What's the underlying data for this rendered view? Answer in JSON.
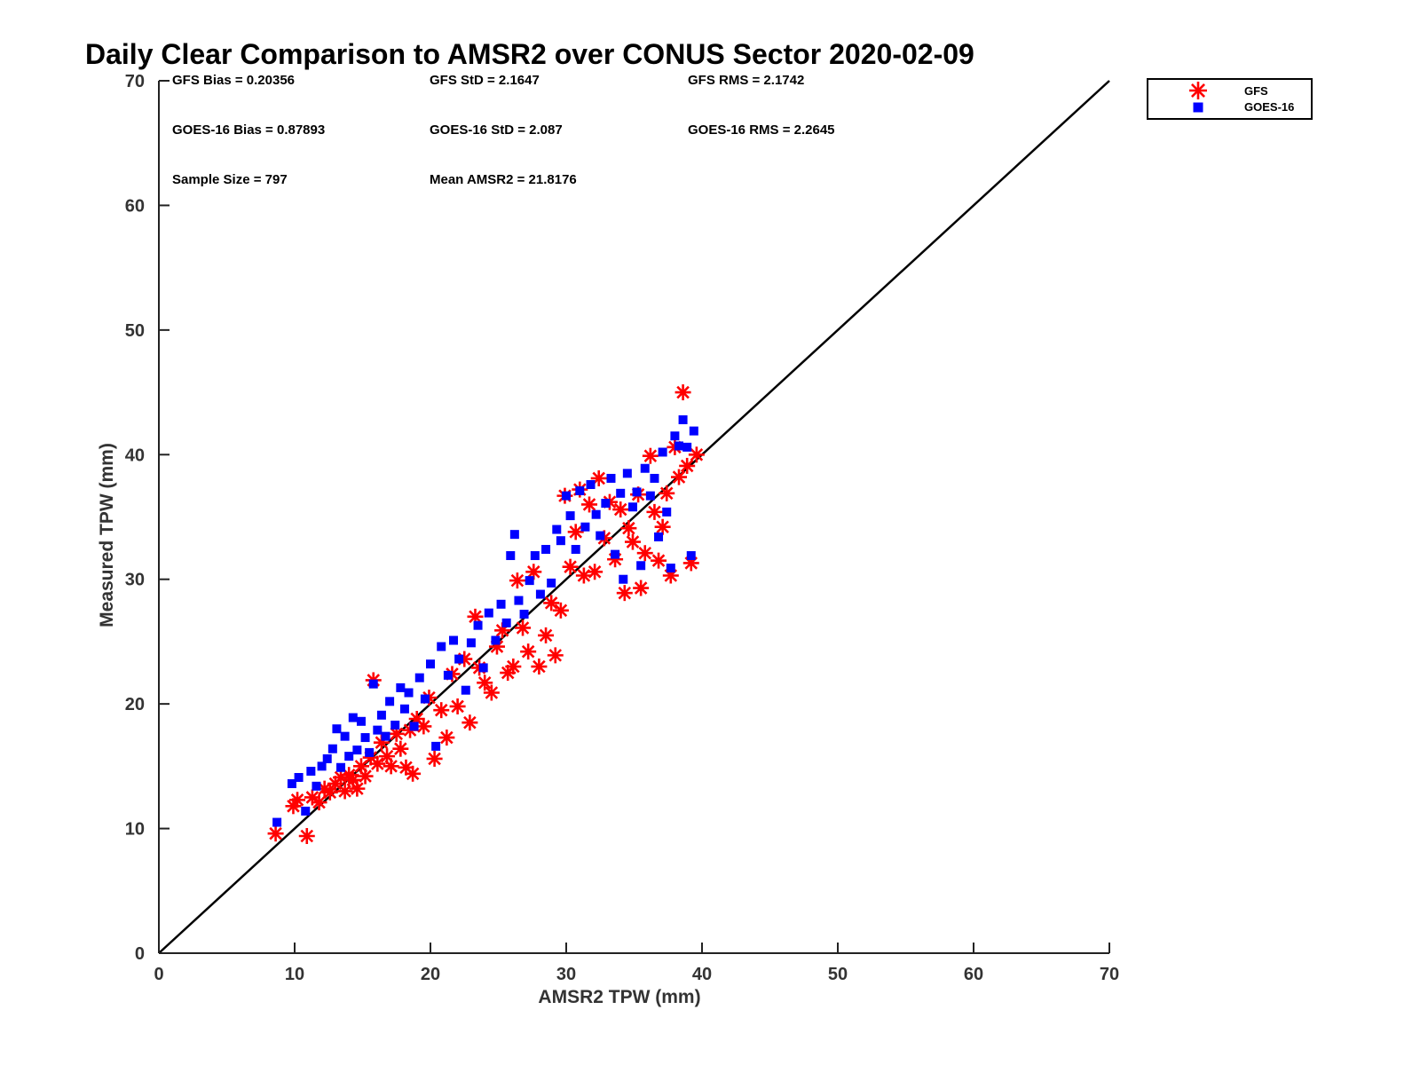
{
  "chart_data": {
    "type": "scatter",
    "title": "Daily Clear Comparison to AMSR2 over CONUS Sector 2020-02-09",
    "xlabel": "AMSR2 TPW (mm)",
    "ylabel": "Measured TPW (mm)",
    "xlim": [
      0,
      70
    ],
    "ylim": [
      0,
      70
    ],
    "xticks": [
      0,
      10,
      20,
      30,
      40,
      50,
      60,
      70
    ],
    "yticks": [
      0,
      10,
      20,
      30,
      40,
      50,
      60,
      70
    ],
    "xtick_labels": [
      "0",
      "10",
      "20",
      "30",
      "40",
      "50",
      "60",
      "70"
    ],
    "ytick_labels": [
      "0",
      "10",
      "20",
      "30",
      "40",
      "50",
      "60",
      "70"
    ],
    "grid": false,
    "legend_position": "top-right, outside plot",
    "reference_line": {
      "from": [
        0,
        0
      ],
      "to": [
        70,
        70
      ],
      "color": "#000000"
    },
    "stats": [
      "GFS Bias = 0.20356",
      "GFS StD = 2.1647",
      "GFS RMS = 2.1742",
      "GOES-16 Bias = 0.87893",
      "GOES-16 StD = 2.087",
      "GOES-16 RMS = 2.2645",
      "Sample Size = 797",
      "Mean AMSR2 = 21.8176"
    ],
    "series": [
      {
        "name": "GFS",
        "marker": "asterisk",
        "color": "#ff0000",
        "points": [
          [
            8.6,
            9.6
          ],
          [
            9.9,
            11.8
          ],
          [
            10.2,
            12.3
          ],
          [
            10.9,
            9.4
          ],
          [
            11.3,
            12.5
          ],
          [
            11.8,
            12.1
          ],
          [
            12.2,
            13.2
          ],
          [
            12.6,
            12.9
          ],
          [
            13.0,
            13.6
          ],
          [
            13.4,
            14.1
          ],
          [
            13.7,
            13.0
          ],
          [
            14.0,
            14.3
          ],
          [
            14.3,
            13.9
          ],
          [
            14.6,
            13.2
          ],
          [
            14.9,
            15.0
          ],
          [
            15.2,
            14.2
          ],
          [
            15.6,
            15.7
          ],
          [
            15.8,
            21.9
          ],
          [
            16.1,
            15.2
          ],
          [
            16.4,
            16.9
          ],
          [
            16.8,
            15.8
          ],
          [
            17.1,
            15.0
          ],
          [
            17.5,
            17.6
          ],
          [
            17.8,
            16.4
          ],
          [
            18.2,
            14.9
          ],
          [
            18.5,
            17.9
          ],
          [
            18.7,
            14.4
          ],
          [
            19.0,
            18.8
          ],
          [
            19.5,
            18.2
          ],
          [
            19.9,
            20.5
          ],
          [
            20.3,
            15.6
          ],
          [
            20.8,
            19.5
          ],
          [
            21.2,
            17.3
          ],
          [
            21.6,
            22.4
          ],
          [
            22.0,
            19.8
          ],
          [
            22.5,
            23.6
          ],
          [
            22.9,
            18.5
          ],
          [
            23.3,
            27.0
          ],
          [
            23.6,
            22.9
          ],
          [
            24.0,
            21.7
          ],
          [
            24.5,
            20.9
          ],
          [
            24.9,
            24.6
          ],
          [
            25.3,
            25.9
          ],
          [
            25.7,
            22.5
          ],
          [
            26.1,
            23.0
          ],
          [
            26.4,
            29.9
          ],
          [
            26.8,
            26.1
          ],
          [
            27.2,
            24.2
          ],
          [
            27.6,
            30.6
          ],
          [
            28.0,
            23.0
          ],
          [
            28.5,
            25.5
          ],
          [
            28.9,
            28.1
          ],
          [
            29.2,
            23.9
          ],
          [
            29.6,
            27.5
          ],
          [
            29.9,
            36.7
          ],
          [
            30.3,
            31.0
          ],
          [
            30.7,
            33.8
          ],
          [
            31.0,
            37.2
          ],
          [
            31.3,
            30.3
          ],
          [
            31.7,
            36.0
          ],
          [
            32.1,
            30.6
          ],
          [
            32.4,
            38.1
          ],
          [
            32.8,
            33.3
          ],
          [
            33.2,
            36.2
          ],
          [
            33.6,
            31.6
          ],
          [
            34.0,
            35.6
          ],
          [
            34.3,
            28.9
          ],
          [
            34.6,
            34.1
          ],
          [
            34.9,
            33.0
          ],
          [
            35.3,
            36.8
          ],
          [
            35.5,
            29.3
          ],
          [
            35.8,
            32.1
          ],
          [
            36.2,
            39.9
          ],
          [
            36.5,
            35.4
          ],
          [
            36.8,
            31.5
          ],
          [
            37.1,
            34.2
          ],
          [
            37.4,
            36.9
          ],
          [
            37.7,
            30.3
          ],
          [
            38.0,
            40.6
          ],
          [
            38.3,
            38.2
          ],
          [
            38.6,
            45.0
          ],
          [
            38.9,
            39.1
          ],
          [
            39.2,
            31.3
          ],
          [
            39.6,
            40.0
          ]
        ]
      },
      {
        "name": "GOES-16",
        "marker": "square",
        "color": "#0000ff",
        "points": [
          [
            8.7,
            10.5
          ],
          [
            9.8,
            13.6
          ],
          [
            10.3,
            14.1
          ],
          [
            10.8,
            11.4
          ],
          [
            11.2,
            14.6
          ],
          [
            11.6,
            13.4
          ],
          [
            12.0,
            15.0
          ],
          [
            12.4,
            15.6
          ],
          [
            12.8,
            16.4
          ],
          [
            13.1,
            18.0
          ],
          [
            13.4,
            14.9
          ],
          [
            13.7,
            17.4
          ],
          [
            14.0,
            15.8
          ],
          [
            14.3,
            18.9
          ],
          [
            14.6,
            16.3
          ],
          [
            14.9,
            18.6
          ],
          [
            15.2,
            17.3
          ],
          [
            15.5,
            16.1
          ],
          [
            15.8,
            21.6
          ],
          [
            16.1,
            17.9
          ],
          [
            16.4,
            19.1
          ],
          [
            16.7,
            17.4
          ],
          [
            17.0,
            20.2
          ],
          [
            17.4,
            18.3
          ],
          [
            17.8,
            21.3
          ],
          [
            18.1,
            19.6
          ],
          [
            18.4,
            20.9
          ],
          [
            18.8,
            18.2
          ],
          [
            19.2,
            22.1
          ],
          [
            19.6,
            20.4
          ],
          [
            20.0,
            23.2
          ],
          [
            20.4,
            16.6
          ],
          [
            20.8,
            24.6
          ],
          [
            21.3,
            22.3
          ],
          [
            21.7,
            25.1
          ],
          [
            22.1,
            23.6
          ],
          [
            22.6,
            21.1
          ],
          [
            23.0,
            24.9
          ],
          [
            23.5,
            26.3
          ],
          [
            23.9,
            22.9
          ],
          [
            24.3,
            27.3
          ],
          [
            24.8,
            25.1
          ],
          [
            25.2,
            28.0
          ],
          [
            25.6,
            26.5
          ],
          [
            25.9,
            31.9
          ],
          [
            26.2,
            33.6
          ],
          [
            26.5,
            28.3
          ],
          [
            26.9,
            27.2
          ],
          [
            27.3,
            29.9
          ],
          [
            27.7,
            31.9
          ],
          [
            28.1,
            28.8
          ],
          [
            28.5,
            32.4
          ],
          [
            28.9,
            29.7
          ],
          [
            29.3,
            34.0
          ],
          [
            29.6,
            33.1
          ],
          [
            30.0,
            36.7
          ],
          [
            30.3,
            35.1
          ],
          [
            30.7,
            32.4
          ],
          [
            31.0,
            37.1
          ],
          [
            31.4,
            34.2
          ],
          [
            31.8,
            37.6
          ],
          [
            32.2,
            35.2
          ],
          [
            32.5,
            33.5
          ],
          [
            32.9,
            36.1
          ],
          [
            33.3,
            38.1
          ],
          [
            33.6,
            32.0
          ],
          [
            34.0,
            36.9
          ],
          [
            34.2,
            30.0
          ],
          [
            34.5,
            38.5
          ],
          [
            34.9,
            35.8
          ],
          [
            35.2,
            37.0
          ],
          [
            35.5,
            31.1
          ],
          [
            35.8,
            38.9
          ],
          [
            36.2,
            36.7
          ],
          [
            36.5,
            38.1
          ],
          [
            36.8,
            33.4
          ],
          [
            37.1,
            40.2
          ],
          [
            37.4,
            35.4
          ],
          [
            37.7,
            30.9
          ],
          [
            38.0,
            41.5
          ],
          [
            38.3,
            40.7
          ],
          [
            38.6,
            42.8
          ],
          [
            38.9,
            40.6
          ],
          [
            39.2,
            31.9
          ],
          [
            39.4,
            41.9
          ]
        ]
      }
    ]
  }
}
